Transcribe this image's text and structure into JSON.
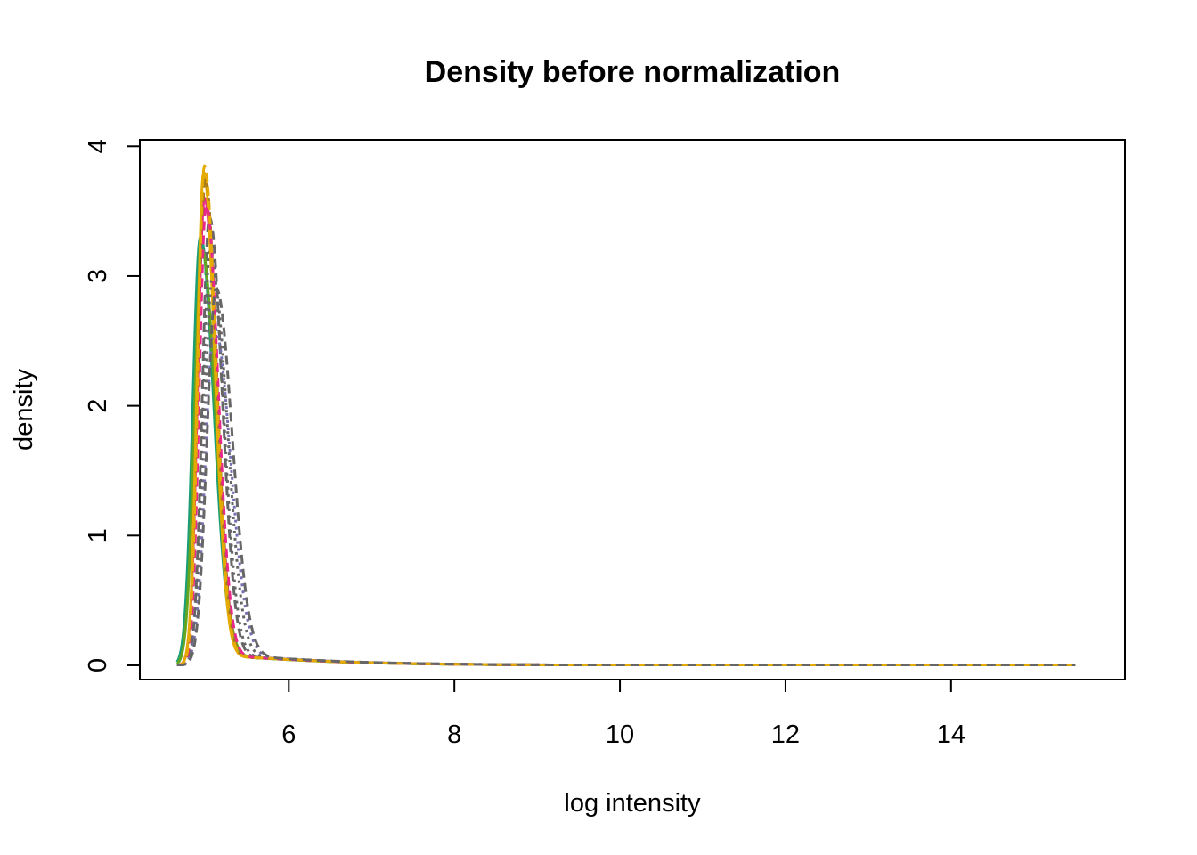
{
  "chart_data": {
    "type": "line",
    "title": "Density before normalization",
    "xlabel": "log intensity",
    "ylabel": "density",
    "xlim": [
      4.2,
      16.1
    ],
    "ylim": [
      -0.11,
      4.05
    ],
    "xticks": [
      6,
      8,
      10,
      12,
      14
    ],
    "yticks": [
      0,
      1,
      2,
      3,
      4
    ],
    "grid": false,
    "legend": "none",
    "x_range": [
      4.65,
      15.5
    ],
    "series": [
      {
        "color": "#666666",
        "dash": "dashed",
        "mode": 5.04,
        "peak": 3.45,
        "sigma": 0.095
      },
      {
        "color": "#e7298a",
        "dash": "solid",
        "mode": 4.98,
        "peak": 3.6,
        "sigma": 0.09
      },
      {
        "color": "#1b9e77",
        "dash": "solid",
        "mode": 4.93,
        "peak": 3.3,
        "sigma": 0.1
      },
      {
        "color": "#66a61e",
        "dash": "solid",
        "mode": 4.95,
        "peak": 3.2,
        "sigma": 0.1
      },
      {
        "color": "#666666",
        "dash": "dotted",
        "mode": 5.05,
        "peak": 3.2,
        "sigma": 0.1
      },
      {
        "color": "#e6ab02",
        "dash": "solid",
        "mode": 4.97,
        "peak": 3.8,
        "sigma": 0.085
      },
      {
        "color": "#a6761d",
        "dash": "dashed",
        "mode": 4.99,
        "peak": 3.75,
        "sigma": 0.085
      },
      {
        "color": "#666666",
        "dash": "dotted",
        "mode": 5.08,
        "peak": 3.0,
        "sigma": 0.11
      },
      {
        "color": "#e7298a",
        "dash": "dashed",
        "mode": 5.0,
        "peak": 3.55,
        "sigma": 0.09
      },
      {
        "color": "#7570b3",
        "dash": "dotted",
        "mode": 5.1,
        "peak": 2.6,
        "sigma": 0.12
      },
      {
        "color": "#e6ab02",
        "dash": "dashed",
        "mode": 4.98,
        "peak": 3.85,
        "sigma": 0.085
      },
      {
        "color": "#666666",
        "dash": "dashed",
        "mode": 5.12,
        "peak": 2.9,
        "sigma": 0.12
      }
    ]
  }
}
